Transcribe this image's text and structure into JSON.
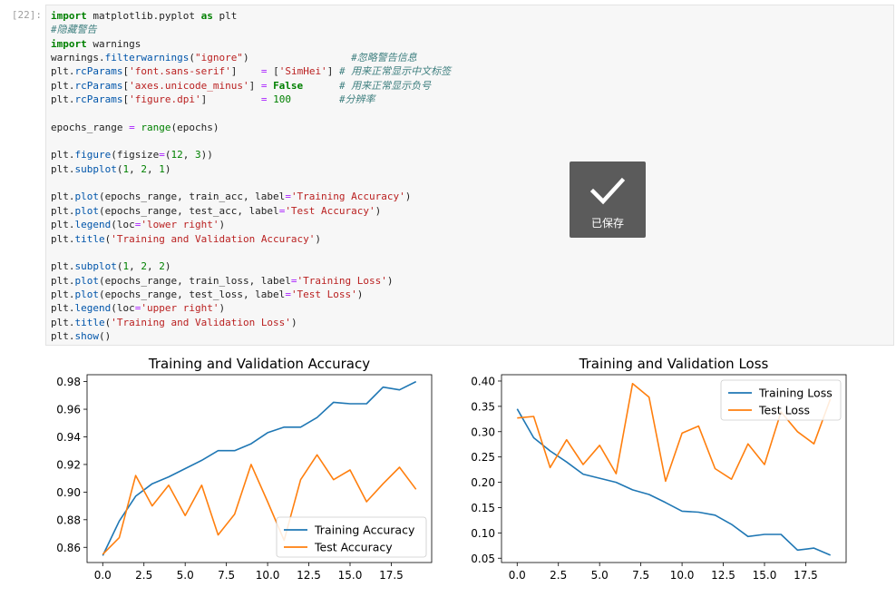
{
  "cell": {
    "prompt": "[22]:",
    "code_lines": [
      [
        [
          "import",
          "kw"
        ],
        [
          " matplotlib.pyplot ",
          ""
        ],
        [
          "as",
          "kw"
        ],
        [
          " plt",
          ""
        ]
      ],
      [
        [
          "#隐藏警告",
          "cm"
        ]
      ],
      [
        [
          "import",
          "kw"
        ],
        [
          " warnings",
          ""
        ]
      ],
      [
        [
          "warnings.",
          ""
        ],
        [
          "filterwarnings",
          "fn"
        ],
        [
          "(",
          ""
        ],
        [
          "\"ignore\"",
          "st"
        ],
        [
          ")                 ",
          ""
        ],
        [
          "#忽略警告信息",
          "cm"
        ]
      ],
      [
        [
          "plt.",
          ""
        ],
        [
          "rcParams",
          "fn"
        ],
        [
          "[",
          ""
        ],
        [
          "'font.sans-serif'",
          "st"
        ],
        [
          "]    ",
          ""
        ],
        [
          "=",
          "op"
        ],
        [
          " [",
          ""
        ],
        [
          "'SimHei'",
          "st"
        ],
        [
          "] ",
          ""
        ],
        [
          "# 用来正常显示中文标签",
          "cm"
        ]
      ],
      [
        [
          "plt.",
          ""
        ],
        [
          "rcParams",
          "fn"
        ],
        [
          "[",
          ""
        ],
        [
          "'axes.unicode_minus'",
          "st"
        ],
        [
          "] ",
          ""
        ],
        [
          "=",
          "op"
        ],
        [
          " ",
          ""
        ],
        [
          "False",
          "kw"
        ],
        [
          "      ",
          ""
        ],
        [
          "# 用来正常显示负号",
          "cm"
        ]
      ],
      [
        [
          "plt.",
          ""
        ],
        [
          "rcParams",
          "fn"
        ],
        [
          "[",
          ""
        ],
        [
          "'figure.dpi'",
          "st"
        ],
        [
          "]         ",
          ""
        ],
        [
          "=",
          "op"
        ],
        [
          " ",
          ""
        ],
        [
          "100",
          "nm"
        ],
        [
          "        ",
          ""
        ],
        [
          "#分辨率",
          "cm"
        ]
      ],
      [],
      [
        [
          "epochs_range ",
          ""
        ],
        [
          "=",
          "op"
        ],
        [
          " ",
          ""
        ],
        [
          "range",
          "nm"
        ],
        [
          "(epochs)",
          ""
        ]
      ],
      [],
      [
        [
          "plt.",
          ""
        ],
        [
          "figure",
          "fn"
        ],
        [
          "(figsize",
          ""
        ],
        [
          "=",
          "op"
        ],
        [
          "(",
          ""
        ],
        [
          "12",
          "nm"
        ],
        [
          ", ",
          ""
        ],
        [
          "3",
          "nm"
        ],
        [
          "))",
          ""
        ]
      ],
      [
        [
          "plt.",
          ""
        ],
        [
          "subplot",
          "fn"
        ],
        [
          "(",
          ""
        ],
        [
          "1",
          "nm"
        ],
        [
          ", ",
          ""
        ],
        [
          "2",
          "nm"
        ],
        [
          ", ",
          ""
        ],
        [
          "1",
          "nm"
        ],
        [
          ")",
          ""
        ]
      ],
      [],
      [
        [
          "plt.",
          ""
        ],
        [
          "plot",
          "fn"
        ],
        [
          "(epochs_range, train_acc, label",
          ""
        ],
        [
          "=",
          "op"
        ],
        [
          "'Training Accuracy'",
          "st"
        ],
        [
          ")",
          ""
        ]
      ],
      [
        [
          "plt.",
          ""
        ],
        [
          "plot",
          "fn"
        ],
        [
          "(epochs_range, test_acc, label",
          ""
        ],
        [
          "=",
          "op"
        ],
        [
          "'Test Accuracy'",
          "st"
        ],
        [
          ")",
          ""
        ]
      ],
      [
        [
          "plt.",
          ""
        ],
        [
          "legend",
          "fn"
        ],
        [
          "(loc",
          ""
        ],
        [
          "=",
          "op"
        ],
        [
          "'lower right'",
          "st"
        ],
        [
          ")",
          ""
        ]
      ],
      [
        [
          "plt.",
          ""
        ],
        [
          "title",
          "fn"
        ],
        [
          "(",
          ""
        ],
        [
          "'Training and Validation Accuracy'",
          "st"
        ],
        [
          ")",
          ""
        ]
      ],
      [],
      [
        [
          "plt.",
          ""
        ],
        [
          "subplot",
          "fn"
        ],
        [
          "(",
          ""
        ],
        [
          "1",
          "nm"
        ],
        [
          ", ",
          ""
        ],
        [
          "2",
          "nm"
        ],
        [
          ", ",
          ""
        ],
        [
          "2",
          "nm"
        ],
        [
          ")",
          ""
        ]
      ],
      [
        [
          "plt.",
          ""
        ],
        [
          "plot",
          "fn"
        ],
        [
          "(epochs_range, train_loss, label",
          ""
        ],
        [
          "=",
          "op"
        ],
        [
          "'Training Loss'",
          "st"
        ],
        [
          ")",
          ""
        ]
      ],
      [
        [
          "plt.",
          ""
        ],
        [
          "plot",
          "fn"
        ],
        [
          "(epochs_range, test_loss, label",
          ""
        ],
        [
          "=",
          "op"
        ],
        [
          "'Test Loss'",
          "st"
        ],
        [
          ")",
          ""
        ]
      ],
      [
        [
          "plt.",
          ""
        ],
        [
          "legend",
          "fn"
        ],
        [
          "(loc",
          ""
        ],
        [
          "=",
          "op"
        ],
        [
          "'upper right'",
          "st"
        ],
        [
          ")",
          ""
        ]
      ],
      [
        [
          "plt.",
          ""
        ],
        [
          "title",
          "fn"
        ],
        [
          "(",
          ""
        ],
        [
          "'Training and Validation Loss'",
          "st"
        ],
        [
          ")",
          ""
        ]
      ],
      [
        [
          "plt.",
          ""
        ],
        [
          "show",
          "fn"
        ],
        [
          "()",
          ""
        ]
      ]
    ]
  },
  "toast": {
    "label": "已保存",
    "icon": "checkmark-icon"
  },
  "chart_data": [
    {
      "type": "line",
      "title": "Training and Validation Accuracy",
      "xlim": [
        -0.95,
        19.95
      ],
      "ylim": [
        0.849,
        0.985
      ],
      "xticks": [
        0,
        2.5,
        5,
        7.5,
        10,
        12.5,
        15,
        17.5
      ],
      "xtick_labels": [
        "0.0",
        "2.5",
        "5.0",
        "7.5",
        "10.0",
        "12.5",
        "15.0",
        "17.5"
      ],
      "yticks": [
        0.86,
        0.88,
        0.9,
        0.92,
        0.94,
        0.96,
        0.98
      ],
      "ytick_labels": [
        "0.86",
        "0.88",
        "0.90",
        "0.92",
        "0.94",
        "0.96",
        "0.98"
      ],
      "legend_loc": "lower right",
      "x": [
        0,
        1,
        2,
        3,
        4,
        5,
        6,
        7,
        8,
        9,
        10,
        11,
        12,
        13,
        14,
        15,
        16,
        17,
        18,
        19
      ],
      "series": [
        {
          "name": "Training Accuracy",
          "color": "#1f77b4",
          "values": [
            0.854,
            0.879,
            0.897,
            0.906,
            0.911,
            0.917,
            0.923,
            0.93,
            0.93,
            0.935,
            0.943,
            0.947,
            0.947,
            0.954,
            0.965,
            0.964,
            0.964,
            0.976,
            0.974,
            0.98
          ]
        },
        {
          "name": "Test Accuracy",
          "color": "#ff7f0e",
          "values": [
            0.855,
            0.867,
            0.912,
            0.89,
            0.905,
            0.883,
            0.905,
            0.869,
            0.884,
            0.92,
            0.893,
            0.865,
            0.909,
            0.927,
            0.909,
            0.916,
            0.893,
            0.906,
            0.918,
            0.902
          ]
        }
      ]
    },
    {
      "type": "line",
      "title": "Training and Validation Loss",
      "xlim": [
        -0.95,
        19.95
      ],
      "ylim": [
        0.0415,
        0.4125
      ],
      "xticks": [
        0,
        2.5,
        5,
        7.5,
        10,
        12.5,
        15,
        17.5
      ],
      "xtick_labels": [
        "0.0",
        "2.5",
        "5.0",
        "7.5",
        "10.0",
        "12.5",
        "15.0",
        "17.5"
      ],
      "yticks": [
        0.05,
        0.1,
        0.15,
        0.2,
        0.25,
        0.3,
        0.35,
        0.4
      ],
      "ytick_labels": [
        "0.05",
        "0.10",
        "0.15",
        "0.20",
        "0.25",
        "0.30",
        "0.35",
        "0.40"
      ],
      "legend_loc": "upper right",
      "x": [
        0,
        1,
        2,
        3,
        4,
        5,
        6,
        7,
        8,
        9,
        10,
        11,
        12,
        13,
        14,
        15,
        16,
        17,
        18,
        19
      ],
      "series": [
        {
          "name": "Training Loss",
          "color": "#1f77b4",
          "values": [
            0.345,
            0.288,
            0.262,
            0.24,
            0.216,
            0.208,
            0.2,
            0.185,
            0.176,
            0.16,
            0.143,
            0.141,
            0.135,
            0.117,
            0.093,
            0.097,
            0.097,
            0.066,
            0.07,
            0.056
          ]
        },
        {
          "name": "Test Loss",
          "color": "#ff7f0e",
          "values": [
            0.327,
            0.33,
            0.229,
            0.284,
            0.235,
            0.273,
            0.217,
            0.395,
            0.368,
            0.202,
            0.297,
            0.311,
            0.227,
            0.206,
            0.276,
            0.235,
            0.339,
            0.3,
            0.276,
            0.365
          ]
        }
      ]
    }
  ]
}
